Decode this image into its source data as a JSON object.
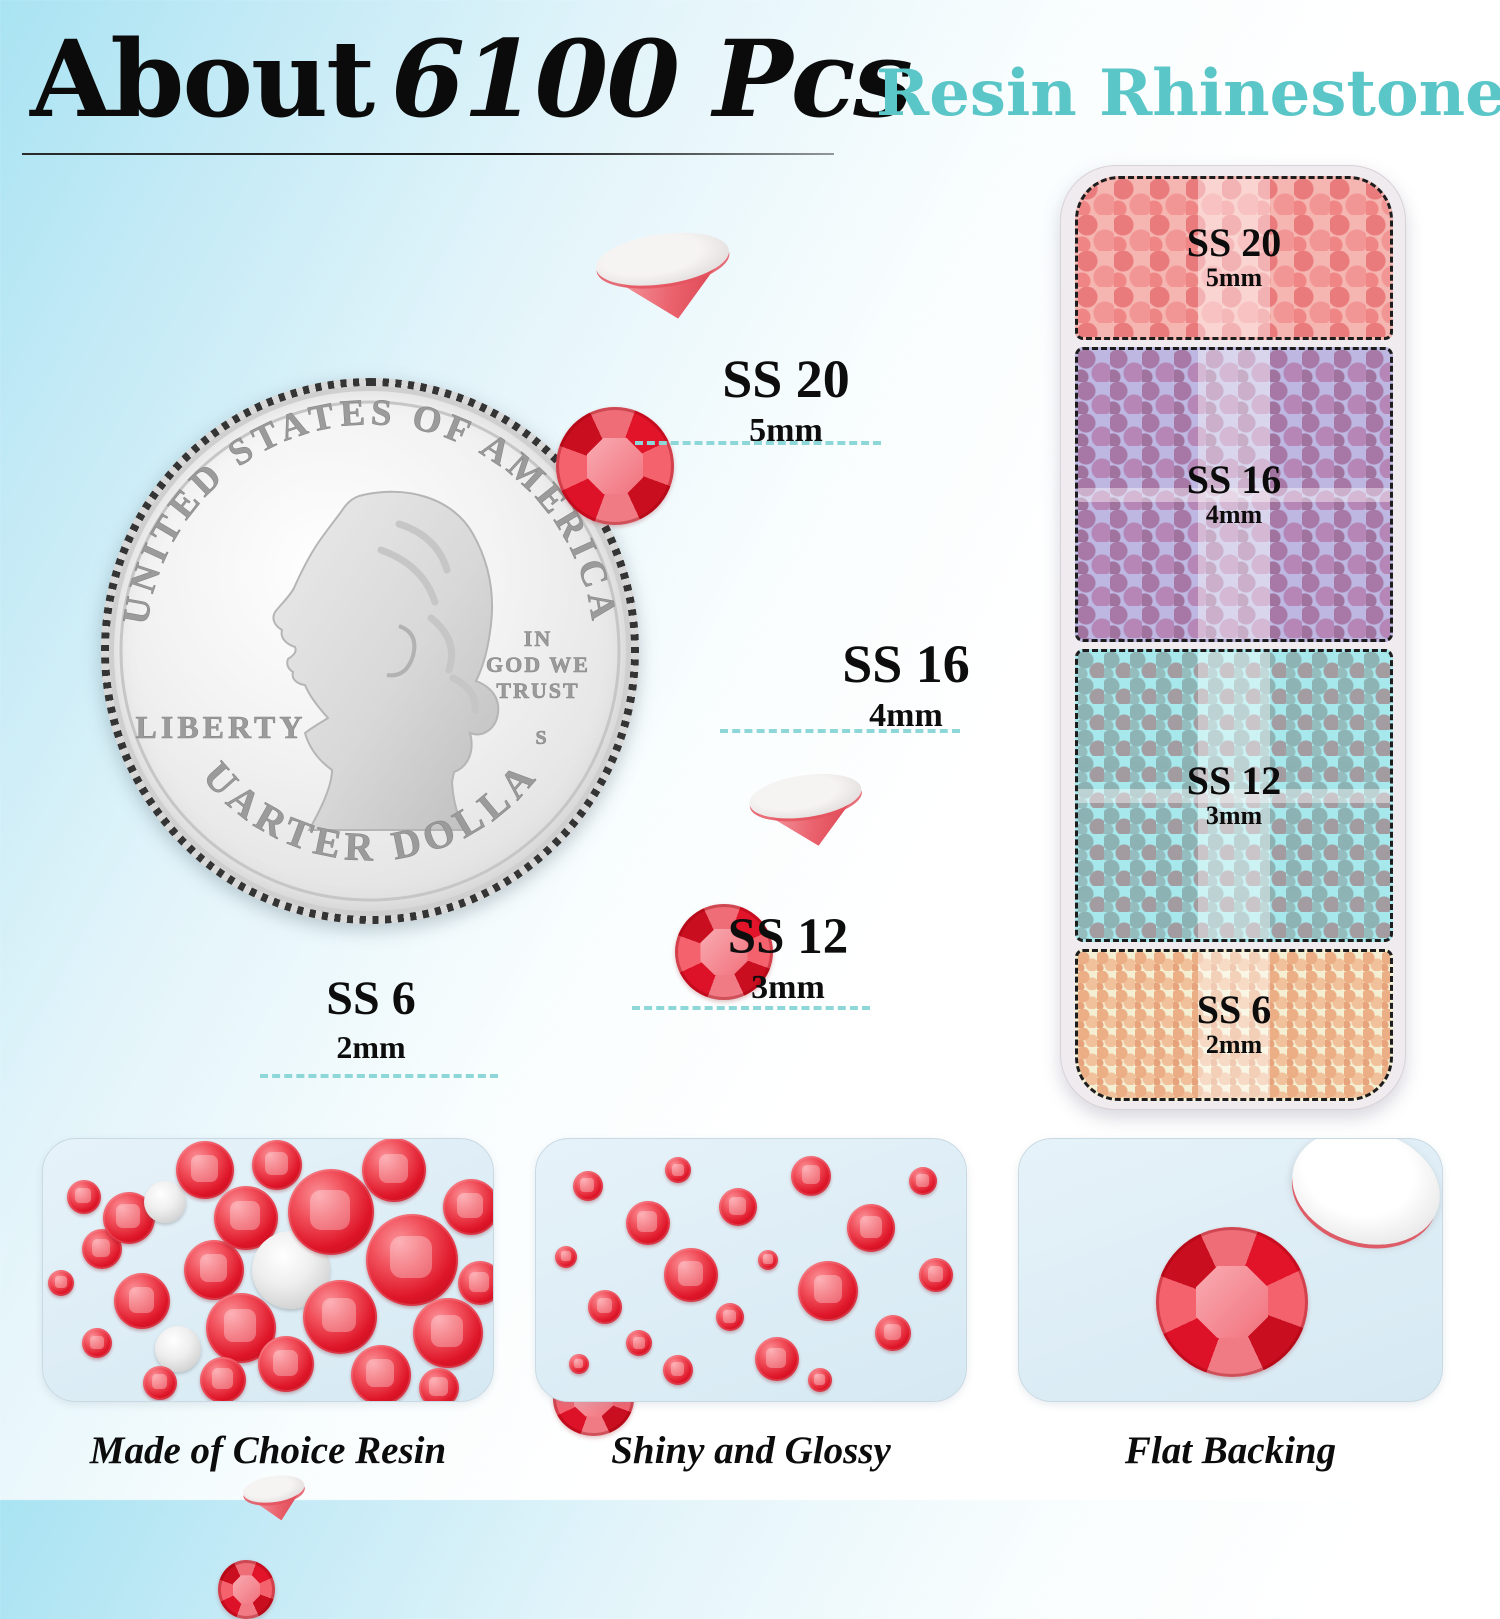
{
  "header": {
    "title_prefix": "About",
    "title_count": "6100 Pcs",
    "subtitle": "Resin Rhinestones"
  },
  "coin": {
    "top_text": "UNITED STATES OF AMERICA",
    "liberty": "LIBERTY",
    "motto_line1": "IN",
    "motto_line2": "GOD WE",
    "motto_line3": "TRUST",
    "mint_mark": "S",
    "bottom_text": "QUARTER DOLLAR"
  },
  "sizes": [
    {
      "label": "SS 20",
      "size_mm": "5mm"
    },
    {
      "label": "SS 16",
      "size_mm": "4mm"
    },
    {
      "label": "SS 12",
      "size_mm": "3mm"
    },
    {
      "label": "SS 6",
      "size_mm": "2mm"
    }
  ],
  "box": {
    "section_tints": [
      "#f5b5b0",
      "#bdb7e1",
      "#a7e8ec",
      "#f4efd2"
    ]
  },
  "features": [
    {
      "caption": "Made of Choice Resin"
    },
    {
      "caption": "Shiny and Glossy"
    },
    {
      "caption": "Flat Backing"
    }
  ],
  "colors": {
    "accent_teal": "#5bc6c8",
    "gem_red": "#e01a2b",
    "dashed_line": "#8ed7d8",
    "background_top_left": "#a9e3f2"
  }
}
